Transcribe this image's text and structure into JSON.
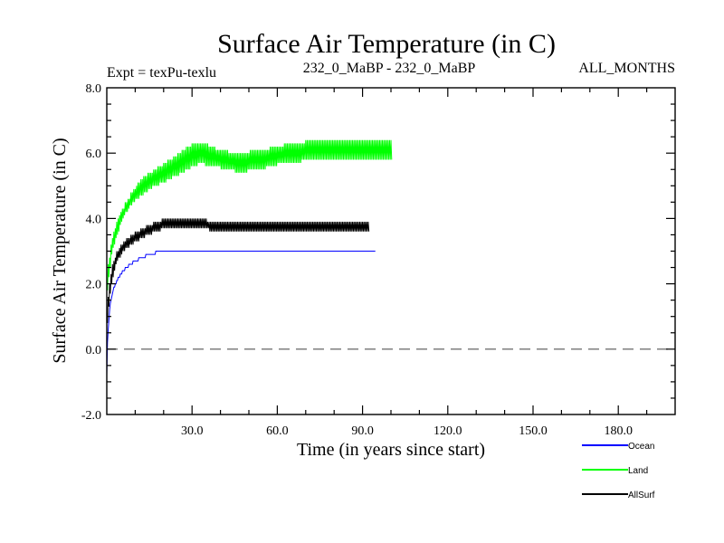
{
  "chart_data": {
    "type": "line",
    "title": "Surface Air Temperature (in C)",
    "expt_label": "Expt = texPu-texlu",
    "subtitle": "232_0_MaBP - 232_0_MaBP",
    "months_label": "ALL_MONTHS",
    "xlabel": "Time (in years since start)",
    "ylabel": "Surface Air Temperature (in C)",
    "xlim": [
      0,
      200
    ],
    "ylim": [
      -2.0,
      8.0
    ],
    "x_ticks": [
      30,
      60,
      90,
      120,
      150,
      180
    ],
    "x_tick_labels": [
      "30.0",
      "60.0",
      "90.0",
      "120.0",
      "150.0",
      "180.0"
    ],
    "y_ticks": [
      -2,
      0,
      2,
      4,
      6,
      8
    ],
    "y_tick_labels": [
      "-2.0",
      "0.0",
      "2.0",
      "4.0",
      "6.0",
      "8.0"
    ],
    "zero_line": 0.0,
    "x_step": 0.25,
    "series": [
      {
        "name": "Land",
        "color": "#00ff00",
        "values": [
          2.2,
          1.8,
          2.6,
          2.2,
          2.8,
          2.5,
          3.2,
          2.9,
          3.4,
          3.1,
          3.6,
          3.2,
          3.7,
          3.4,
          3.9,
          3.5,
          4.0,
          3.6,
          4.1,
          3.8,
          4.2,
          3.9,
          4.3,
          4.0,
          4.3,
          4.1,
          4.5,
          4.2,
          4.5,
          4.2,
          4.6,
          4.3,
          4.6,
          4.4,
          4.8,
          4.4,
          4.8,
          4.5,
          4.9,
          4.5,
          4.9,
          4.6,
          5.0,
          4.6,
          5.1,
          4.6,
          5.1,
          4.7,
          5.2,
          4.7,
          5.2,
          4.7,
          5.3,
          4.8,
          5.3,
          4.8,
          5.3,
          4.8,
          5.4,
          4.9,
          5.4,
          4.9,
          5.4,
          4.9,
          5.4,
          5.0,
          5.5,
          5.0,
          5.5,
          5.0,
          5.5,
          5.0,
          5.6,
          5.0,
          5.6,
          5.1,
          5.6,
          5.1,
          5.6,
          5.1,
          5.7,
          5.1,
          5.7,
          5.1,
          5.7,
          5.2,
          5.8,
          5.2,
          5.8,
          5.2,
          5.8,
          5.2,
          5.8,
          5.3,
          5.9,
          5.3,
          5.9,
          5.3,
          5.9,
          5.3,
          6.0,
          5.3,
          6.0,
          5.4,
          6.0,
          5.4,
          6.1,
          5.4,
          6.1,
          5.4,
          6.1,
          5.5,
          6.2,
          5.5,
          6.2,
          5.5,
          6.2,
          5.5,
          6.2,
          5.6,
          6.3,
          5.6,
          6.3,
          5.6,
          6.3,
          5.6,
          6.3,
          5.6,
          6.3,
          5.7,
          6.3,
          5.7,
          6.3,
          5.7,
          6.3,
          5.7,
          6.3,
          5.7,
          6.3,
          5.6,
          6.3,
          5.6,
          6.3,
          5.6,
          6.2,
          5.6,
          6.2,
          5.6,
          6.2,
          5.6,
          6.2,
          5.6,
          6.2,
          5.6,
          6.1,
          5.6,
          6.1,
          5.6,
          6.1,
          5.6,
          6.1,
          5.5,
          6.1,
          5.5,
          6.1,
          5.5,
          6.1,
          5.5,
          6.1,
          5.5,
          6.1,
          5.5,
          6.0,
          5.5,
          6.0,
          5.5,
          6.0,
          5.5,
          6.0,
          5.5,
          6.0,
          5.4,
          6.0,
          5.4,
          6.0,
          5.4,
          6.0,
          5.4,
          6.0,
          5.4,
          6.0,
          5.4,
          6.0,
          5.4,
          6.0,
          5.4,
          6.0,
          5.4,
          6.0,
          5.5,
          6.0,
          5.5,
          6.1,
          5.5,
          6.1,
          5.5,
          6.1,
          5.5,
          6.1,
          5.5,
          6.1,
          5.5,
          6.1,
          5.5,
          6.1,
          5.5,
          6.1,
          5.5,
          6.1,
          5.5,
          6.1,
          5.5,
          6.1,
          5.5,
          6.1,
          5.6,
          6.1,
          5.6,
          6.1,
          5.6,
          6.2,
          5.6,
          6.2,
          5.6,
          6.2,
          5.6,
          6.2,
          5.6,
          6.2,
          5.6,
          6.2,
          5.7,
          6.2,
          5.7,
          6.2,
          5.7,
          6.2,
          5.7,
          6.2,
          5.7,
          6.3,
          5.7,
          6.3,
          5.7,
          6.3,
          5.7,
          6.3,
          5.7,
          6.3,
          5.7,
          6.3,
          5.7,
          6.3,
          5.7,
          6.3,
          5.7,
          6.3,
          5.7,
          6.3,
          5.7,
          6.3,
          5.7,
          6.3,
          5.7,
          6.3,
          5.8,
          6.3,
          5.8,
          6.3,
          5.8,
          6.4,
          5.8,
          6.4,
          5.8,
          6.4,
          5.8,
          6.4,
          5.8,
          6.4,
          5.8,
          6.4,
          5.8,
          6.4,
          5.8,
          6.4,
          5.8,
          6.4,
          5.8,
          6.4,
          5.8,
          6.4,
          5.8,
          6.4,
          5.8,
          6.4,
          5.8,
          6.4,
          5.8,
          6.4,
          5.8,
          6.4,
          5.8,
          6.4,
          5.8,
          6.4,
          5.8,
          6.4,
          5.8,
          6.4,
          5.8,
          6.4,
          5.8,
          6.4,
          5.8,
          6.4,
          5.8,
          6.4,
          5.8,
          6.4,
          5.8,
          6.4,
          5.8,
          6.4,
          5.8,
          6.4,
          5.8,
          6.4,
          5.8,
          6.4,
          5.8,
          6.4,
          5.8,
          6.4,
          5.8,
          6.4,
          5.8,
          6.4,
          5.8,
          6.4,
          5.8,
          6.4,
          5.8,
          6.4,
          5.8,
          6.4,
          5.8,
          6.4,
          5.8,
          6.4,
          5.8,
          6.4,
          5.8,
          6.4,
          5.8,
          6.4,
          5.8,
          6.4,
          5.8,
          6.4,
          5.8,
          6.4,
          5.8,
          6.4,
          5.8,
          6.4,
          5.8,
          6.4,
          5.8,
          6.4,
          5.8,
          6.4,
          5.8,
          6.4,
          5.8,
          6.4,
          5.8,
          6.4,
          5.8,
          6.4,
          5.8,
          6.4,
          5.8,
          6.4,
          5.8,
          6.4,
          5.8,
          6.4,
          5.8,
          6.4,
          5.8,
          6.4,
          5.8
        ]
      },
      {
        "name": "AllSurf",
        "color": "#000000",
        "values": [
          1.1,
          0.8,
          1.6,
          1.3,
          2.0,
          1.7,
          2.3,
          2.0,
          2.6,
          2.2,
          2.7,
          2.4,
          2.8,
          2.6,
          3.0,
          2.7,
          3.0,
          2.8,
          3.1,
          2.8,
          3.2,
          2.9,
          3.2,
          3.0,
          3.3,
          3.0,
          3.3,
          3.1,
          3.4,
          3.1,
          3.4,
          3.1,
          3.4,
          3.2,
          3.5,
          3.2,
          3.5,
          3.2,
          3.5,
          3.3,
          3.6,
          3.3,
          3.6,
          3.3,
          3.6,
          3.3,
          3.6,
          3.4,
          3.7,
          3.4,
          3.7,
          3.4,
          3.7,
          3.4,
          3.7,
          3.5,
          3.8,
          3.5,
          3.8,
          3.5,
          3.8,
          3.5,
          3.8,
          3.5,
          3.8,
          3.6,
          3.9,
          3.6,
          3.9,
          3.6,
          3.9,
          3.6,
          3.9,
          3.6,
          3.9,
          3.6,
          3.9,
          3.7,
          4.0,
          3.7,
          4.0,
          3.7,
          4.0,
          3.7,
          4.0,
          3.7,
          4.0,
          3.7,
          4.0,
          3.7,
          4.0,
          3.7,
          4.0,
          3.7,
          4.0,
          3.7,
          4.0,
          3.7,
          4.0,
          3.7,
          4.0,
          3.7,
          4.0,
          3.7,
          4.0,
          3.7,
          4.0,
          3.7,
          4.0,
          3.7,
          4.0,
          3.7,
          4.0,
          3.7,
          4.0,
          3.7,
          4.0,
          3.7,
          4.0,
          3.7,
          4.0,
          3.7,
          4.0,
          3.7,
          4.0,
          3.7,
          4.0,
          3.7,
          4.0,
          3.7,
          4.0,
          3.7,
          4.0,
          3.7,
          4.0,
          3.7,
          4.0,
          3.7,
          4.0,
          3.7,
          4.0,
          3.7,
          3.9,
          3.7,
          3.9,
          3.6,
          3.9,
          3.6,
          3.9,
          3.6,
          3.9,
          3.6,
          3.9,
          3.6,
          3.9,
          3.6,
          3.9,
          3.6,
          3.9,
          3.6,
          3.9,
          3.6,
          3.9,
          3.6,
          3.9,
          3.6,
          3.9,
          3.6,
          3.9,
          3.6,
          3.9,
          3.6,
          3.9,
          3.6,
          3.9,
          3.6,
          3.9,
          3.6,
          3.9,
          3.6,
          3.9,
          3.6,
          3.9,
          3.6,
          3.9,
          3.6,
          3.9,
          3.6,
          3.9,
          3.6,
          3.9,
          3.6,
          3.9,
          3.6,
          3.9,
          3.6,
          3.9,
          3.6,
          3.9,
          3.6,
          3.9,
          3.6,
          3.9,
          3.6,
          3.9,
          3.6,
          3.9,
          3.6,
          3.9,
          3.6,
          3.9,
          3.6,
          3.9,
          3.6,
          3.9,
          3.6,
          3.9,
          3.6,
          3.9,
          3.6,
          3.9,
          3.6,
          3.9,
          3.6,
          3.9,
          3.6,
          3.9,
          3.6,
          3.9,
          3.6,
          3.9,
          3.6,
          3.9,
          3.6,
          3.9,
          3.6,
          3.9,
          3.6,
          3.9,
          3.6,
          3.9,
          3.6,
          3.9,
          3.6,
          3.9,
          3.6,
          3.9,
          3.6,
          3.9,
          3.6,
          3.9,
          3.6,
          3.9,
          3.6,
          3.9,
          3.6,
          3.9,
          3.6,
          3.9,
          3.6,
          3.9,
          3.6,
          3.9,
          3.6,
          3.9,
          3.6,
          3.9,
          3.6,
          3.9,
          3.6,
          3.9,
          3.6,
          3.9,
          3.6,
          3.9,
          3.6,
          3.9,
          3.6,
          3.9,
          3.6,
          3.9,
          3.6,
          3.9,
          3.6,
          3.9,
          3.6,
          3.9,
          3.6,
          3.9,
          3.6,
          3.9,
          3.6,
          3.9,
          3.6,
          3.9,
          3.6,
          3.9,
          3.6,
          3.9,
          3.6,
          3.9,
          3.6,
          3.9,
          3.6,
          3.9,
          3.6,
          3.9,
          3.6,
          3.9,
          3.6,
          3.9,
          3.6,
          3.9,
          3.6,
          3.9,
          3.6,
          3.9,
          3.6,
          3.9,
          3.6,
          3.9,
          3.6,
          3.9,
          3.6,
          3.9,
          3.6,
          3.9,
          3.6,
          3.9,
          3.6,
          3.9,
          3.6,
          3.9,
          3.6,
          3.9,
          3.6,
          3.9,
          3.6,
          3.9,
          3.6,
          3.9,
          3.6,
          3.9,
          3.6,
          3.9,
          3.6,
          3.9,
          3.6,
          3.9,
          3.6,
          3.9,
          3.6,
          3.9,
          3.6,
          3.9,
          3.6,
          3.9,
          3.6,
          3.9,
          3.6,
          3.9,
          3.6,
          3.9,
          3.6,
          3.9,
          3.6,
          3.9,
          3.6,
          3.9,
          3.6
        ]
      },
      {
        "name": "Ocean",
        "color": "#0000ff",
        "values": [
          -0.8,
          0.2,
          0.6,
          0.9,
          1.2,
          1.4,
          1.5,
          1.6,
          1.7,
          1.8,
          1.9,
          1.9,
          2.0,
          2.0,
          2.1,
          2.1,
          2.2,
          2.2,
          2.2,
          2.3,
          2.3,
          2.3,
          2.4,
          2.4,
          2.4,
          2.4,
          2.5,
          2.5,
          2.5,
          2.5,
          2.5,
          2.6,
          2.6,
          2.6,
          2.6,
          2.6,
          2.6,
          2.7,
          2.7,
          2.7,
          2.7,
          2.7,
          2.7,
          2.7,
          2.7,
          2.8,
          2.8,
          2.8,
          2.8,
          2.8,
          2.8,
          2.8,
          2.8,
          2.8,
          2.8,
          2.9,
          2.9,
          2.9,
          2.9,
          2.9,
          2.9,
          2.9,
          2.9,
          2.9,
          2.9,
          2.9,
          2.9,
          2.9,
          2.9,
          3.0,
          3.0,
          3.0,
          3.0,
          3.0,
          3.0,
          3.0,
          3.0,
          3.0,
          3.0,
          3.0,
          3.0,
          3.0,
          3.0,
          3.0,
          3.0,
          3.0,
          3.0,
          3.0,
          3.0,
          3.0,
          3.0,
          3.0,
          3.0,
          3.0,
          3.0,
          3.0,
          3.0,
          3.0,
          3.0,
          3.0,
          3.0,
          3.0,
          3.0,
          3.0,
          3.0,
          3.0,
          3.0,
          3.0,
          3.0,
          3.0,
          3.0,
          3.0,
          3.0,
          3.0,
          3.0,
          3.0,
          3.0,
          3.0,
          3.0,
          3.0,
          3.0,
          3.0,
          3.0,
          3.0,
          3.0,
          3.0,
          3.0,
          3.0,
          3.0,
          3.0,
          3.0,
          3.0,
          3.0,
          3.0,
          3.0,
          3.0,
          3.0,
          3.0,
          3.0,
          3.0,
          3.0,
          3.0,
          3.0,
          3.0,
          3.0,
          3.0,
          3.0,
          3.0,
          3.0,
          3.0,
          3.0,
          3.0,
          3.0,
          3.0,
          3.0,
          3.0,
          3.0,
          3.0,
          3.0,
          3.0,
          3.0,
          3.0,
          3.0,
          3.0,
          3.0,
          3.0,
          3.0,
          3.0,
          3.0,
          3.0,
          3.0,
          3.0,
          3.0,
          3.0,
          3.0,
          3.0,
          3.0,
          3.0,
          3.0,
          3.0,
          3.0,
          3.0,
          3.0,
          3.0,
          3.0,
          3.0,
          3.0,
          3.0,
          3.0,
          3.0,
          3.0,
          3.0,
          3.0,
          3.0,
          3.0,
          3.0,
          3.0,
          3.0,
          3.0,
          3.0,
          3.0,
          3.0,
          3.0,
          3.0,
          3.0,
          3.0,
          3.0,
          3.0,
          3.0,
          3.0,
          3.0,
          3.0,
          3.0,
          3.0,
          3.0,
          3.0,
          3.0,
          3.0,
          3.0,
          3.0,
          3.0,
          3.0,
          3.0,
          3.0,
          3.0,
          3.0,
          3.0,
          3.0,
          3.0,
          3.0,
          3.0,
          3.0,
          3.0,
          3.0,
          3.0,
          3.0,
          3.0,
          3.0,
          3.0,
          3.0,
          3.0,
          3.0,
          3.0,
          3.0,
          3.0,
          3.0,
          3.0,
          3.0,
          3.0,
          3.0,
          3.0,
          3.0,
          3.0,
          3.0,
          3.0,
          3.0,
          3.0,
          3.0,
          3.0,
          3.0,
          3.0,
          3.0,
          3.0,
          3.0,
          3.0,
          3.0,
          3.0,
          3.0,
          3.0,
          3.0,
          3.0,
          3.0,
          3.0,
          3.0,
          3.0,
          3.0,
          3.0,
          3.0,
          3.0,
          3.0,
          3.0,
          3.0,
          3.0,
          3.0,
          3.0,
          3.0,
          3.0,
          3.0,
          3.0,
          3.0,
          3.0,
          3.0,
          3.0,
          3.0,
          3.0,
          3.0,
          3.0,
          3.0,
          3.0,
          3.0,
          3.0,
          3.0,
          3.0,
          3.0,
          3.0,
          3.0,
          3.0,
          3.0,
          3.0,
          3.0,
          3.0,
          3.0,
          3.0,
          3.0,
          3.0,
          3.0,
          3.0,
          3.0,
          3.0,
          3.0,
          3.0,
          3.0,
          3.0,
          3.0,
          3.0,
          3.0,
          3.0,
          3.0,
          3.0,
          3.0,
          3.0,
          3.0,
          3.0,
          3.0,
          3.0,
          3.0,
          3.0,
          3.0,
          3.0,
          3.0,
          3.0,
          3.0,
          3.0,
          3.0,
          3.0,
          3.0,
          3.0,
          3.0,
          3.0,
          3.0,
          3.0,
          3.0,
          3.0,
          3.0,
          3.0,
          3.0,
          3.0,
          3.0,
          3.0,
          3.0,
          3.0,
          3.0,
          3.0,
          3.0,
          3.0,
          3.0,
          3.0,
          3.0,
          3.0,
          3.0,
          3.0,
          3.0,
          3.0,
          3.0,
          3.0,
          3.0,
          3.0,
          3.0,
          3.0
        ]
      }
    ],
    "legend": [
      {
        "name": "Ocean",
        "color": "#0000ff"
      },
      {
        "name": "Land",
        "color": "#00ff00"
      },
      {
        "name": "AllSurf",
        "color": "#000000"
      }
    ],
    "legend_position": "bottom-right"
  }
}
